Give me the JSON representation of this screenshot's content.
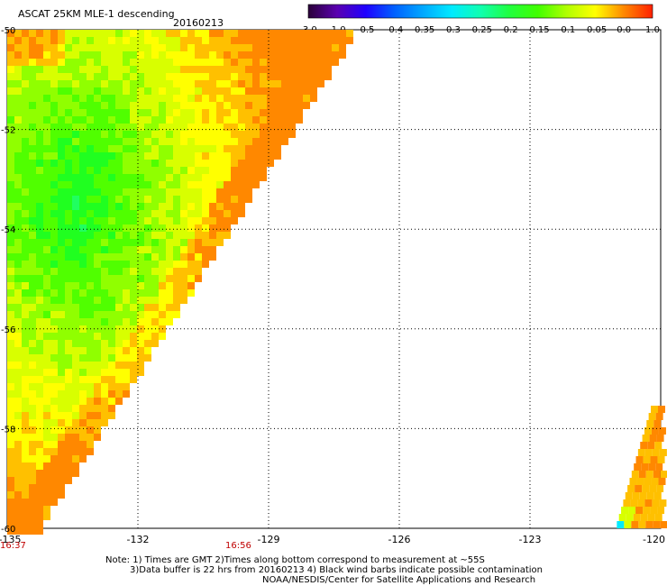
{
  "header": {
    "title": "ASCAT 25KM MLE-1 descending",
    "date": "20160213"
  },
  "colorbar": {
    "labels": [
      "-3.0",
      "-1.0",
      "-0.5",
      "-0.4",
      "-0.35",
      "-0.3",
      "-0.25",
      "-0.2",
      "-0.15",
      "-0.1",
      "-0.05",
      "0.0",
      "1.0"
    ],
    "colors": [
      "#2a0038",
      "#5a00b0",
      "#2000ff",
      "#0060ff",
      "#00a8ff",
      "#00eaff",
      "#10ffb0",
      "#20ff40",
      "#40ff00",
      "#b0ff00",
      "#ffff00",
      "#ff8800",
      "#ff2000"
    ]
  },
  "map": {
    "lon_ticks": [
      "-135",
      "-132",
      "-129",
      "-126",
      "-123",
      "-120"
    ],
    "lat_ticks": [
      "-50",
      "-52",
      "-54",
      "-56",
      "-58",
      "-60"
    ],
    "time_labels": [
      "16:37",
      "16:56"
    ],
    "time_color": "#c00000"
  },
  "notes": [
    "Note: 1) Times are GMT 2)Times along bottom correspond to measurement at ~55S",
    "3)Data buffer is 22 hrs from 20160213 4) Black wind barbs indicate possible contamination",
    "NOAA/NESDIS/Center for Satellite Applications and Research"
  ]
}
